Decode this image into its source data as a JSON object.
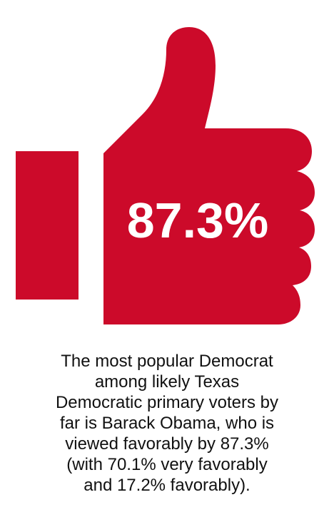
{
  "stat": "87.3%",
  "caption": [
    "The most popular Democrat",
    "among likely Texas",
    "Democratic primary voters by",
    "far is Barack Obama, who is",
    "viewed favorably by 87.3%",
    "(with 70.1% very favorably",
    "and 17.2% favorably)."
  ]
}
